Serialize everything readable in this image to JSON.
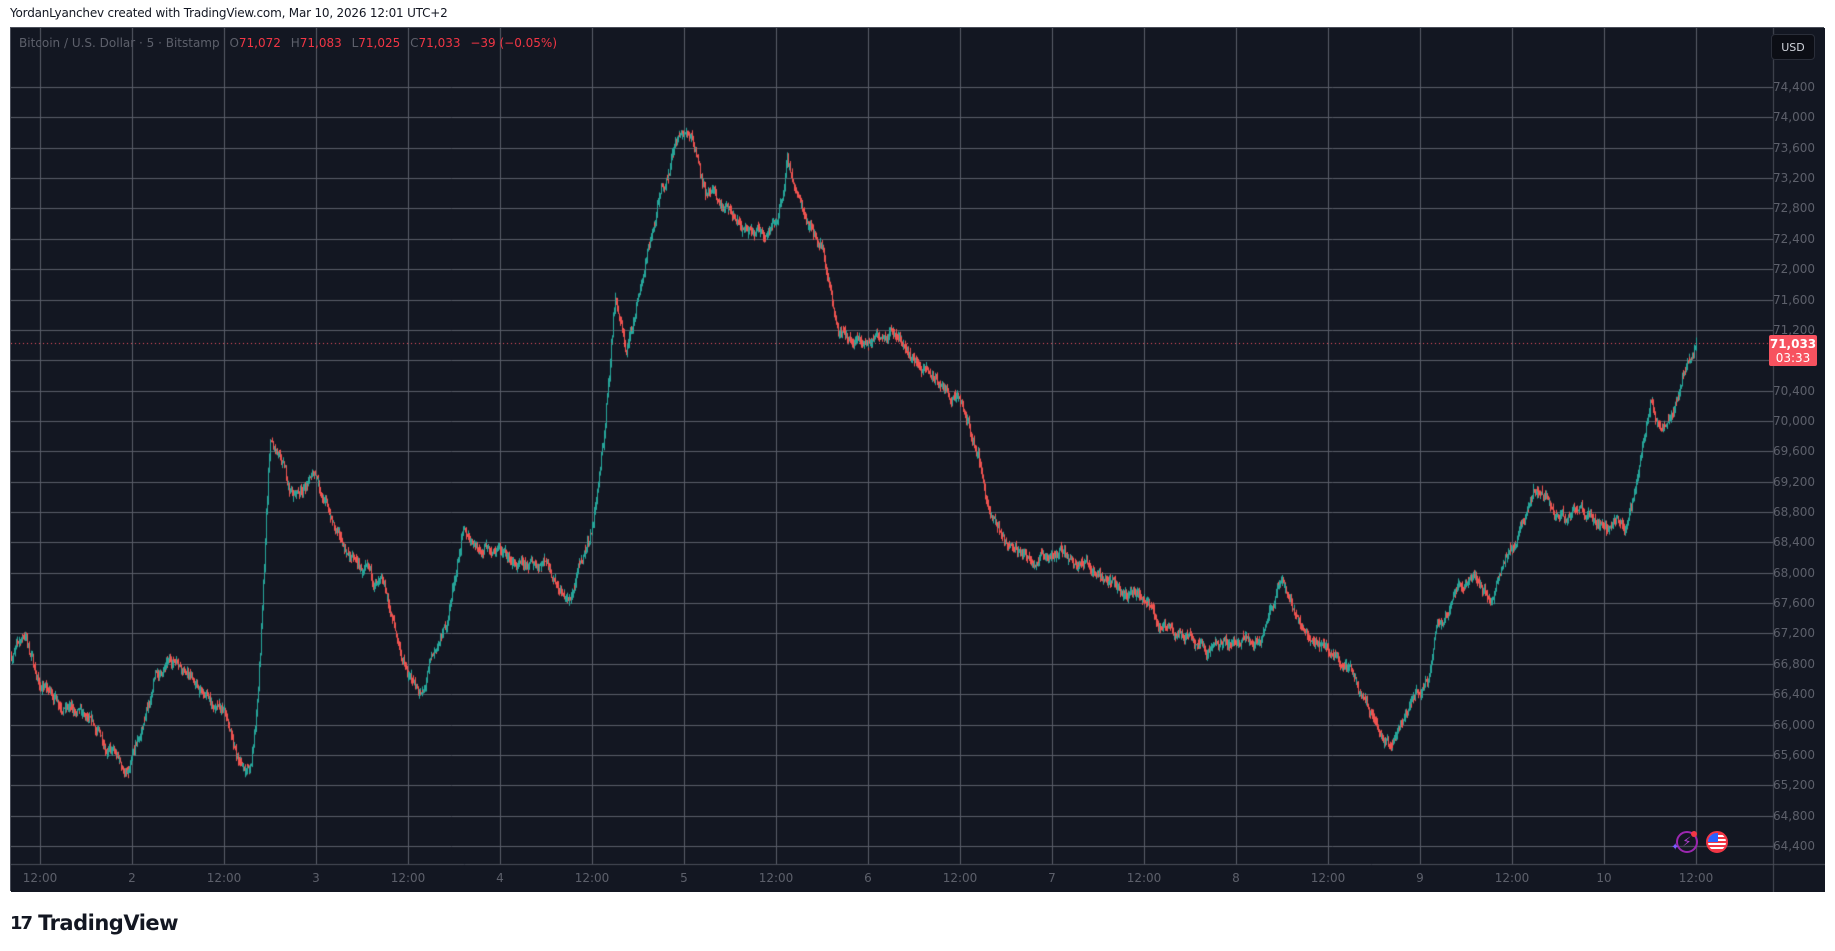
{
  "credit": "YordanLyanchev created with TradingView.com, Mar 10, 2026 12:01 UTC+2",
  "legend": {
    "symbol": "Bitcoin / U.S. Dollar · 5 · Bitstamp",
    "open_label": "O",
    "open": "71,072",
    "high_label": "H",
    "high": "71,083",
    "low_label": "L",
    "low": "71,025",
    "close_label": "C",
    "close": "71,033",
    "change": "−39 (−0.05%)"
  },
  "currency_button": "USD",
  "last_price": {
    "price": "71,033",
    "countdown": "03:33"
  },
  "brand": {
    "logo": "17",
    "name": "TradingView"
  },
  "icons": [
    "ai-assistant-bolt-icon",
    "us-flag-events-icon"
  ],
  "colors": {
    "up": "#26a69a",
    "down": "#ef5350",
    "background": "#131722",
    "grid": "#5a5e69",
    "axis_text": "#5d606b",
    "last_price": "#f7525f"
  },
  "chart_data": {
    "type": "candlestick",
    "title": "Bitcoin / U.S. Dollar · 5 · Bitstamp",
    "interval": "5m",
    "xlabel": "",
    "ylabel": "USD",
    "ylim": [
      64100,
      74850
    ],
    "y_ticks": [
      74400,
      74000,
      73600,
      73200,
      72800,
      72400,
      72000,
      71600,
      71200,
      70800,
      70400,
      70000,
      69600,
      69200,
      68800,
      68400,
      68000,
      67600,
      67200,
      66800,
      66400,
      66000,
      65600,
      65200,
      64800,
      64400
    ],
    "y_tick_labels": [
      "74,400",
      "74,000",
      "73,600",
      "73,200",
      "72,800",
      "72,400",
      "72,000",
      "71,600",
      "71,200",
      "",
      "70,400",
      "70,000",
      "69,600",
      "69,200",
      "68,800",
      "68,400",
      "68,000",
      "67,600",
      "67,200",
      "66,800",
      "66,400",
      "66,000",
      "65,600",
      "65,200",
      "64,800",
      "64,400"
    ],
    "x_tick_labels": [
      "12:00",
      "2",
      "12:00",
      "3",
      "12:00",
      "4",
      "12:00",
      "5",
      "12:00",
      "6",
      "12:00",
      "7",
      "12:00",
      "8",
      "12:00",
      "9",
      "12:00",
      "10",
      "12:00"
    ],
    "x_tick_hours": [
      12,
      24,
      36,
      48,
      60,
      72,
      84,
      96,
      108,
      120,
      132,
      144,
      156,
      168,
      180,
      192,
      204,
      216,
      228
    ],
    "grid": true,
    "last_price": 71033,
    "ohlc_last": {
      "open": 71072,
      "high": 71083,
      "low": 71025,
      "close": 71033,
      "change": -39,
      "change_pct": -0.05
    },
    "anchor_hours": [
      8.2,
      10,
      12,
      15,
      18,
      21,
      23.5,
      25,
      27,
      30,
      33,
      36,
      38,
      39.5,
      40.5,
      42,
      45,
      48,
      51,
      54,
      57,
      60,
      62,
      63,
      65,
      67,
      69,
      72,
      75,
      78,
      81,
      84,
      85.5,
      87,
      88.5,
      90,
      93,
      95,
      97,
      99,
      102,
      105,
      108,
      109.5,
      111,
      114,
      116,
      118,
      120,
      123,
      126,
      129,
      132,
      134.5,
      136,
      138,
      141,
      144,
      147,
      150,
      153,
      156,
      159,
      162,
      165,
      168,
      171,
      174,
      177,
      180,
      182.5,
      185,
      188,
      191,
      193,
      194,
      196,
      199,
      201,
      204,
      207,
      210,
      213,
      216,
      219,
      220.5,
      222,
      223.5,
      225,
      226.5,
      228,
      229
    ],
    "anchor_prices": [
      66900,
      67200,
      66500,
      66300,
      66000,
      65700,
      65300,
      65800,
      66600,
      66900,
      66400,
      66100,
      65500,
      65400,
      66500,
      69700,
      69000,
      69300,
      68400,
      68000,
      67700,
      66600,
      66400,
      66800,
      67300,
      68500,
      68400,
      68300,
      68000,
      68200,
      67600,
      68600,
      69700,
      71700,
      70900,
      71700,
      73000,
      73700,
      73800,
      73000,
      72700,
      72400,
      72600,
      73400,
      72900,
      72300,
      71300,
      71000,
      71000,
      71300,
      70800,
      70500,
      70200,
      69500,
      68700,
      68400,
      68200,
      68300,
      68200,
      68000,
      67800,
      67600,
      67200,
      67200,
      67000,
      67100,
      67200,
      67900,
      67200,
      67000,
      66800,
      66300,
      65700,
      66300,
      66600,
      67300,
      67600,
      68000,
      67600,
      68300,
      69200,
      68700,
      68800,
      68500,
      68600,
      69300,
      70300,
      69900,
      70100,
      70600,
      71033,
      71033
    ]
  }
}
